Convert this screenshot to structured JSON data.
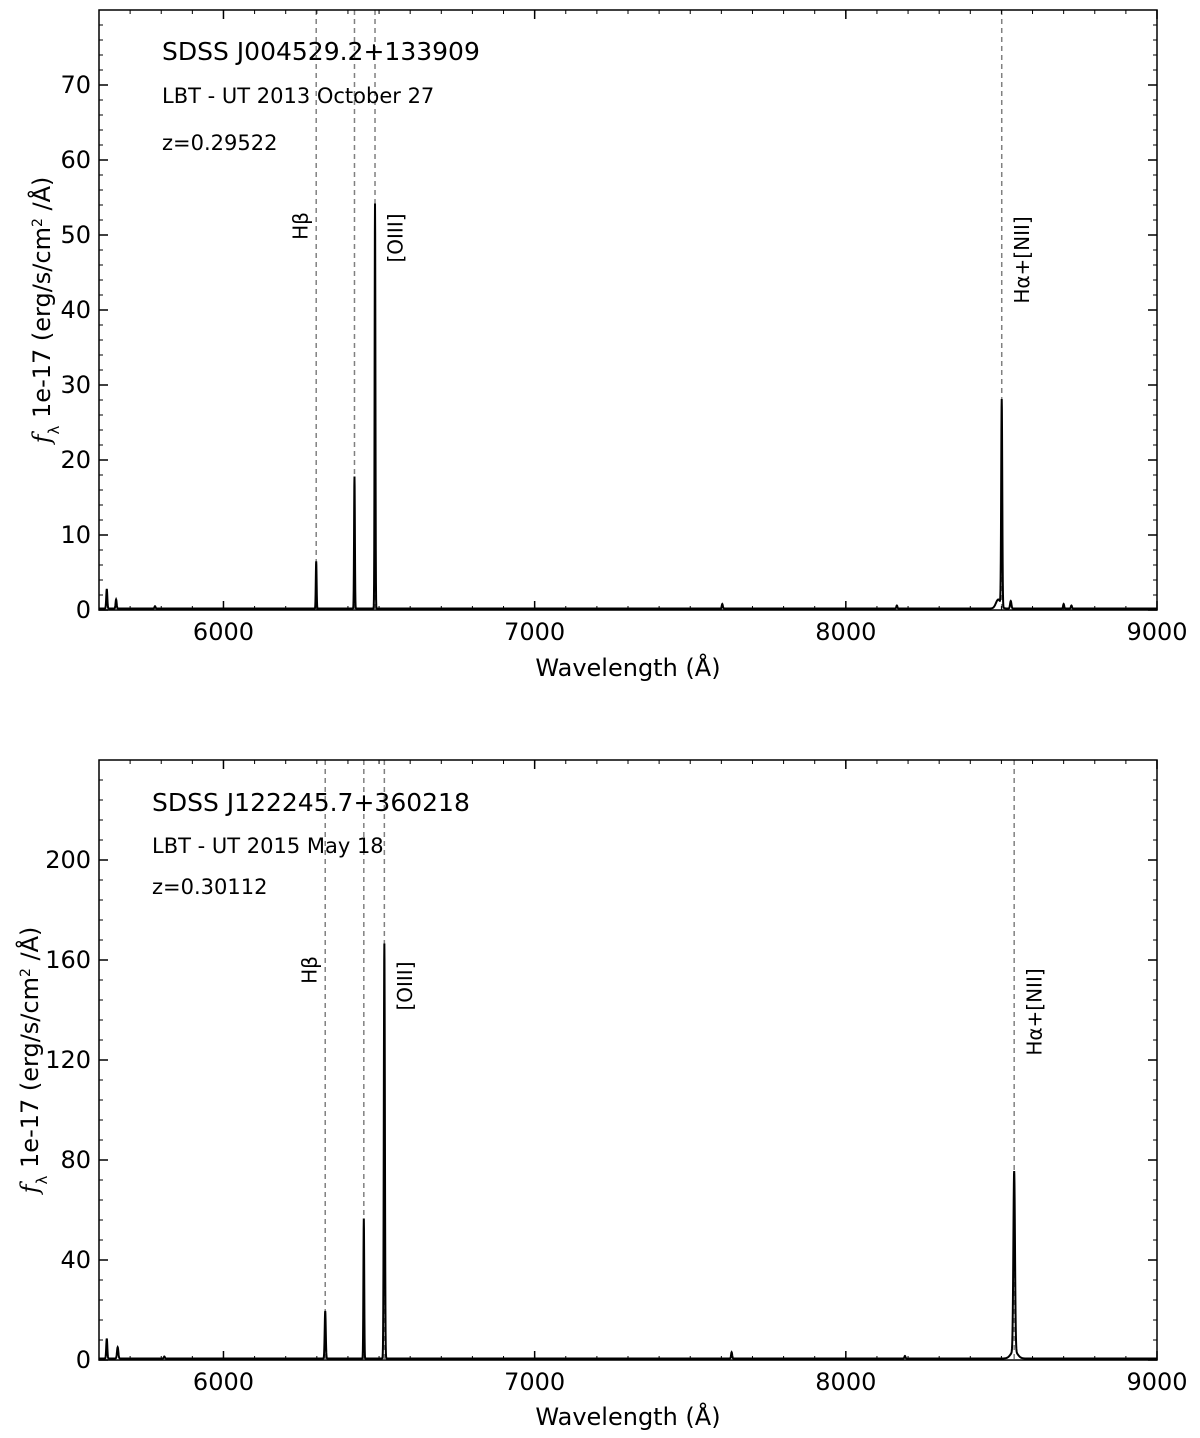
{
  "chart_data": [
    {
      "type": "line",
      "xlabel": "Wavelength (Å)",
      "ylabel": "f_λ 1e-17 (erg/s/cm² /Å)",
      "ylabel_math": "f",
      "ylabel_sub": "λ",
      "ylabel_text": " 1e-17 (erg/s/cm",
      "ylabel_sup": "2",
      "ylabel_tail": " /Å)",
      "xlim": [
        5600,
        9000
      ],
      "ylim": [
        0,
        80
      ],
      "x_ticks": [
        6000,
        7000,
        8000,
        9000
      ],
      "y_ticks": [
        0,
        10,
        20,
        30,
        40,
        50,
        60,
        70
      ],
      "x_minor_step": 100,
      "y_minor_step": 2,
      "annotations": [
        "SDSS J004529.2+133909",
        "LBT - UT 2013 October 27",
        "z=0.29522"
      ],
      "lines": [
        {
          "label": "Hβ",
          "x": 6298
        },
        {
          "label": "",
          "x": 6421
        },
        {
          "label": "[OIII]",
          "x": 6487
        },
        {
          "label": "Hα+[NII]",
          "x": 8501
        }
      ],
      "baseline": 0.2,
      "peaks": [
        {
          "x": 5625,
          "height": 2.6,
          "width": 4
        },
        {
          "x": 5655,
          "height": 1.2,
          "width": 4
        },
        {
          "x": 5780,
          "height": 0.3,
          "width": 4
        },
        {
          "x": 6298,
          "height": 6.3,
          "width": 3
        },
        {
          "x": 6421,
          "height": 17.6,
          "width": 3
        },
        {
          "x": 6487,
          "height": 54.0,
          "width": 3
        },
        {
          "x": 7603,
          "height": 0.6,
          "width": 4
        },
        {
          "x": 8164,
          "height": 0.4,
          "width": 4
        },
        {
          "x": 8490,
          "height": 1.2,
          "width": 18
        },
        {
          "x": 8501,
          "height": 27.5,
          "width": 4
        },
        {
          "x": 8530,
          "height": 1.0,
          "width": 5
        },
        {
          "x": 8700,
          "height": 0.6,
          "width": 4
        },
        {
          "x": 8725,
          "height": 0.4,
          "width": 4
        }
      ]
    },
    {
      "type": "line",
      "xlabel": "Wavelength (Å)",
      "ylabel": "f_λ 1e-17 (erg/s/cm² /Å)",
      "ylabel_math": "f",
      "ylabel_sub": "λ",
      "ylabel_text": " 1e-17 (erg/s/cm",
      "ylabel_sup": "2",
      "ylabel_tail": " /Å)",
      "xlim": [
        5600,
        9000
      ],
      "ylim": [
        0,
        240
      ],
      "x_ticks": [
        6000,
        7000,
        8000,
        9000
      ],
      "y_ticks": [
        0,
        40,
        80,
        120,
        160,
        200
      ],
      "x_minor_step": 100,
      "y_minor_step": 8,
      "annotations": [
        "SDSS J122245.7+360218",
        "LBT - UT 2015 May 18",
        "z=0.30112"
      ],
      "lines": [
        {
          "label": "Hβ",
          "x": 6327
        },
        {
          "label": "",
          "x": 6451
        },
        {
          "label": "[OIII]",
          "x": 6517
        },
        {
          "label": "Hα+[NII]",
          "x": 8541
        }
      ],
      "baseline": 0.6,
      "peaks": [
        {
          "x": 5625,
          "height": 8.0,
          "width": 4
        },
        {
          "x": 5660,
          "height": 4.5,
          "width": 5
        },
        {
          "x": 5810,
          "height": 0.8,
          "width": 4
        },
        {
          "x": 6327,
          "height": 19.0,
          "width": 4
        },
        {
          "x": 6451,
          "height": 56.0,
          "width": 3
        },
        {
          "x": 6517,
          "height": 166.0,
          "width": 4
        },
        {
          "x": 7633,
          "height": 2.5,
          "width": 4
        },
        {
          "x": 8190,
          "height": 1.0,
          "width": 4
        },
        {
          "x": 8541,
          "height": 72.0,
          "width": 6
        },
        {
          "x": 8541,
          "height": 3.0,
          "width": 25
        }
      ]
    }
  ]
}
